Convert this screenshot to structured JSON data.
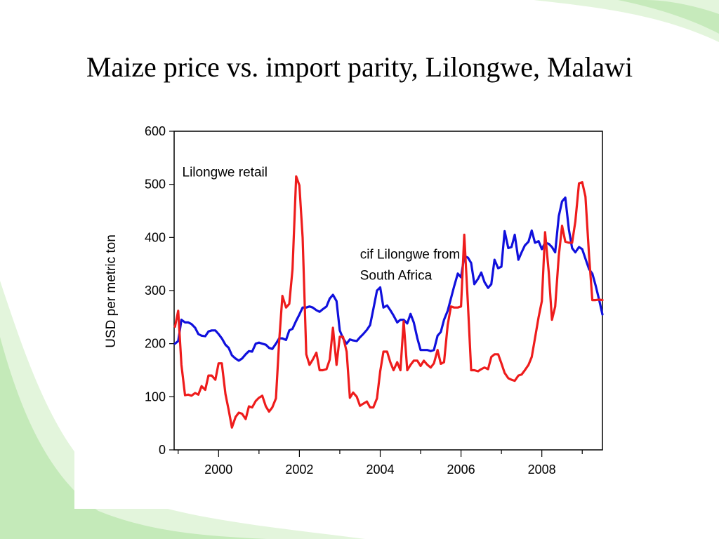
{
  "slide": {
    "title": "Maize price vs. import parity, Lilongwe, Malawi",
    "background_colors": {
      "panel": "#ffffff",
      "swoosh_light": "#e3f5dc",
      "swoosh_mid": "#b9e6ad"
    }
  },
  "chart_data": {
    "type": "line",
    "ylabel": "USD per metric ton",
    "xlabel": "",
    "ylim": [
      0,
      600
    ],
    "yticks": [
      0,
      100,
      200,
      300,
      400,
      500,
      600
    ],
    "xlim": [
      1998.9,
      2009.5
    ],
    "xticks": [
      2000,
      2002,
      2004,
      2006,
      2008
    ],
    "xtick_labels": [
      "2000",
      "2002",
      "2004",
      "2006",
      "2008"
    ],
    "annotations": [
      {
        "text_lines": [
          "Lilongwe retail"
        ],
        "x": 1999.1,
        "y": 515
      },
      {
        "text_lines": [
          "cif Lilongwe from",
          "South Africa"
        ],
        "x": 2003.5,
        "y": 360
      }
    ],
    "series": [
      {
        "name": "",
        "color": "#1010dd",
        "points": [
          [
            1998.92,
            200
          ],
          [
            1999.0,
            205
          ],
          [
            1999.08,
            245
          ],
          [
            1999.17,
            240
          ],
          [
            1999.25,
            240
          ],
          [
            1999.33,
            237
          ],
          [
            1999.42,
            230
          ],
          [
            1999.5,
            218
          ],
          [
            1999.58,
            215
          ],
          [
            1999.67,
            214
          ],
          [
            1999.75,
            223
          ],
          [
            1999.83,
            225
          ],
          [
            1999.92,
            225
          ],
          [
            2000.0,
            218
          ],
          [
            2000.08,
            210
          ],
          [
            2000.17,
            198
          ],
          [
            2000.25,
            192
          ],
          [
            2000.33,
            178
          ],
          [
            2000.42,
            172
          ],
          [
            2000.5,
            168
          ],
          [
            2000.58,
            172
          ],
          [
            2000.67,
            180
          ],
          [
            2000.75,
            186
          ],
          [
            2000.83,
            185
          ],
          [
            2000.92,
            200
          ],
          [
            2001.0,
            202
          ],
          [
            2001.08,
            200
          ],
          [
            2001.17,
            198
          ],
          [
            2001.25,
            192
          ],
          [
            2001.33,
            190
          ],
          [
            2001.42,
            200
          ],
          [
            2001.5,
            210
          ],
          [
            2001.58,
            210
          ],
          [
            2001.67,
            207
          ],
          [
            2001.75,
            225
          ],
          [
            2001.83,
            228
          ],
          [
            2001.92,
            243
          ],
          [
            2002.0,
            255
          ],
          [
            2002.08,
            268
          ],
          [
            2002.17,
            268
          ],
          [
            2002.25,
            270
          ],
          [
            2002.33,
            268
          ],
          [
            2002.42,
            263
          ],
          [
            2002.5,
            260
          ],
          [
            2002.58,
            265
          ],
          [
            2002.67,
            270
          ],
          [
            2002.75,
            285
          ],
          [
            2002.83,
            292
          ],
          [
            2002.92,
            280
          ],
          [
            2003.0,
            225
          ],
          [
            2003.08,
            210
          ],
          [
            2003.17,
            200
          ],
          [
            2003.25,
            208
          ],
          [
            2003.33,
            206
          ],
          [
            2003.42,
            205
          ],
          [
            2003.5,
            212
          ],
          [
            2003.58,
            218
          ],
          [
            2003.67,
            226
          ],
          [
            2003.75,
            235
          ],
          [
            2003.83,
            265
          ],
          [
            2003.92,
            300
          ],
          [
            2004.0,
            306
          ],
          [
            2004.08,
            268
          ],
          [
            2004.17,
            272
          ],
          [
            2004.25,
            263
          ],
          [
            2004.33,
            253
          ],
          [
            2004.42,
            240
          ],
          [
            2004.5,
            245
          ],
          [
            2004.58,
            245
          ],
          [
            2004.67,
            238
          ],
          [
            2004.75,
            256
          ],
          [
            2004.83,
            240
          ],
          [
            2004.92,
            210
          ],
          [
            2005.0,
            188
          ],
          [
            2005.08,
            188
          ],
          [
            2005.17,
            188
          ],
          [
            2005.25,
            186
          ],
          [
            2005.33,
            188
          ],
          [
            2005.42,
            215
          ],
          [
            2005.5,
            222
          ],
          [
            2005.58,
            245
          ],
          [
            2005.67,
            262
          ],
          [
            2005.75,
            285
          ],
          [
            2005.83,
            308
          ],
          [
            2005.92,
            332
          ],
          [
            2006.0,
            325
          ],
          [
            2006.08,
            365
          ],
          [
            2006.17,
            362
          ],
          [
            2006.25,
            352
          ],
          [
            2006.33,
            312
          ],
          [
            2006.42,
            322
          ],
          [
            2006.5,
            334
          ],
          [
            2006.58,
            316
          ],
          [
            2006.67,
            305
          ],
          [
            2006.75,
            312
          ],
          [
            2006.83,
            358
          ],
          [
            2006.92,
            342
          ],
          [
            2007.0,
            345
          ],
          [
            2007.08,
            412
          ],
          [
            2007.17,
            380
          ],
          [
            2007.25,
            382
          ],
          [
            2007.33,
            405
          ],
          [
            2007.42,
            358
          ],
          [
            2007.5,
            372
          ],
          [
            2007.58,
            385
          ],
          [
            2007.67,
            392
          ],
          [
            2007.75,
            413
          ],
          [
            2007.83,
            390
          ],
          [
            2007.92,
            393
          ],
          [
            2008.0,
            378
          ],
          [
            2008.08,
            390
          ],
          [
            2008.17,
            388
          ],
          [
            2008.25,
            382
          ],
          [
            2008.33,
            372
          ],
          [
            2008.42,
            440
          ],
          [
            2008.5,
            468
          ],
          [
            2008.58,
            475
          ],
          [
            2008.67,
            415
          ],
          [
            2008.75,
            380
          ],
          [
            2008.83,
            372
          ],
          [
            2008.92,
            382
          ],
          [
            2009.0,
            378
          ],
          [
            2009.08,
            360
          ],
          [
            2009.17,
            340
          ],
          [
            2009.25,
            332
          ],
          [
            2009.33,
            310
          ],
          [
            2009.42,
            282
          ],
          [
            2009.5,
            255
          ]
        ]
      },
      {
        "name": "",
        "color": "#ee1c1c",
        "points": [
          [
            1998.92,
            232
          ],
          [
            1999.0,
            262
          ],
          [
            1999.08,
            160
          ],
          [
            1999.17,
            103
          ],
          [
            1999.25,
            104
          ],
          [
            1999.33,
            102
          ],
          [
            1999.42,
            107
          ],
          [
            1999.5,
            104
          ],
          [
            1999.58,
            120
          ],
          [
            1999.67,
            113
          ],
          [
            1999.75,
            140
          ],
          [
            1999.83,
            140
          ],
          [
            1999.92,
            132
          ],
          [
            2000.0,
            163
          ],
          [
            2000.08,
            163
          ],
          [
            2000.17,
            105
          ],
          [
            2000.25,
            75
          ],
          [
            2000.33,
            42
          ],
          [
            2000.42,
            62
          ],
          [
            2000.5,
            70
          ],
          [
            2000.58,
            68
          ],
          [
            2000.67,
            58
          ],
          [
            2000.75,
            82
          ],
          [
            2000.83,
            80
          ],
          [
            2000.92,
            92
          ],
          [
            2001.0,
            98
          ],
          [
            2001.08,
            102
          ],
          [
            2001.17,
            82
          ],
          [
            2001.25,
            72
          ],
          [
            2001.33,
            80
          ],
          [
            2001.42,
            97
          ],
          [
            2001.5,
            205
          ],
          [
            2001.58,
            290
          ],
          [
            2001.67,
            268
          ],
          [
            2001.75,
            275
          ],
          [
            2001.83,
            340
          ],
          [
            2001.92,
            515
          ],
          [
            2002.0,
            498
          ],
          [
            2002.08,
            400
          ],
          [
            2002.17,
            180
          ],
          [
            2002.25,
            160
          ],
          [
            2002.33,
            170
          ],
          [
            2002.42,
            183
          ],
          [
            2002.5,
            150
          ],
          [
            2002.58,
            150
          ],
          [
            2002.67,
            152
          ],
          [
            2002.75,
            170
          ],
          [
            2002.83,
            230
          ],
          [
            2002.92,
            160
          ],
          [
            2003.0,
            213
          ],
          [
            2003.08,
            213
          ],
          [
            2003.17,
            185
          ],
          [
            2003.25,
            98
          ],
          [
            2003.33,
            108
          ],
          [
            2003.42,
            100
          ],
          [
            2003.5,
            83
          ],
          [
            2003.58,
            87
          ],
          [
            2003.67,
            91
          ],
          [
            2003.75,
            80
          ],
          [
            2003.83,
            80
          ],
          [
            2003.92,
            97
          ],
          [
            2004.0,
            148
          ],
          [
            2004.08,
            185
          ],
          [
            2004.17,
            185
          ],
          [
            2004.25,
            165
          ],
          [
            2004.33,
            150
          ],
          [
            2004.42,
            165
          ],
          [
            2004.5,
            150
          ],
          [
            2004.58,
            242
          ],
          [
            2004.67,
            150
          ],
          [
            2004.75,
            160
          ],
          [
            2004.83,
            168
          ],
          [
            2004.92,
            168
          ],
          [
            2005.0,
            158
          ],
          [
            2005.08,
            168
          ],
          [
            2005.17,
            160
          ],
          [
            2005.25,
            155
          ],
          [
            2005.33,
            163
          ],
          [
            2005.42,
            188
          ],
          [
            2005.5,
            162
          ],
          [
            2005.58,
            165
          ],
          [
            2005.67,
            235
          ],
          [
            2005.75,
            270
          ],
          [
            2005.83,
            268
          ],
          [
            2005.92,
            268
          ],
          [
            2006.0,
            270
          ],
          [
            2006.08,
            405
          ],
          [
            2006.17,
            275
          ],
          [
            2006.25,
            150
          ],
          [
            2006.33,
            150
          ],
          [
            2006.42,
            148
          ],
          [
            2006.5,
            152
          ],
          [
            2006.58,
            155
          ],
          [
            2006.67,
            152
          ],
          [
            2006.75,
            175
          ],
          [
            2006.83,
            180
          ],
          [
            2006.92,
            180
          ],
          [
            2007.0,
            163
          ],
          [
            2007.08,
            145
          ],
          [
            2007.17,
            135
          ],
          [
            2007.25,
            132
          ],
          [
            2007.33,
            130
          ],
          [
            2007.42,
            140
          ],
          [
            2007.5,
            142
          ],
          [
            2007.58,
            150
          ],
          [
            2007.67,
            160
          ],
          [
            2007.75,
            175
          ],
          [
            2007.83,
            210
          ],
          [
            2007.92,
            250
          ],
          [
            2008.0,
            280
          ],
          [
            2008.08,
            410
          ],
          [
            2008.17,
            335
          ],
          [
            2008.25,
            245
          ],
          [
            2008.33,
            270
          ],
          [
            2008.42,
            365
          ],
          [
            2008.5,
            422
          ],
          [
            2008.58,
            392
          ],
          [
            2008.67,
            390
          ],
          [
            2008.75,
            390
          ],
          [
            2008.83,
            430
          ],
          [
            2008.92,
            502
          ],
          [
            2009.0,
            504
          ],
          [
            2009.08,
            477
          ],
          [
            2009.17,
            365
          ],
          [
            2009.25,
            282
          ],
          [
            2009.33,
            282
          ],
          [
            2009.42,
            283
          ],
          [
            2009.5,
            282
          ]
        ]
      }
    ]
  }
}
